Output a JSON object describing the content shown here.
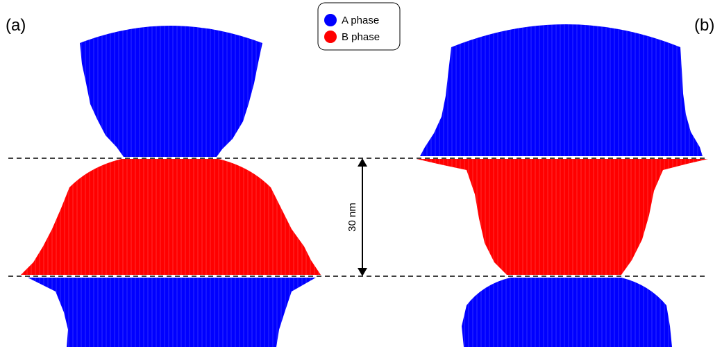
{
  "panels": [
    {
      "label": "(a)"
    },
    {
      "label": "(b)"
    }
  ],
  "legend": {
    "items": [
      {
        "label": "A phase",
        "color": "#0000ff"
      },
      {
        "label": "B phase",
        "color": "#ff0000"
      }
    ]
  },
  "scale_bar": {
    "label": "30 nm"
  }
}
